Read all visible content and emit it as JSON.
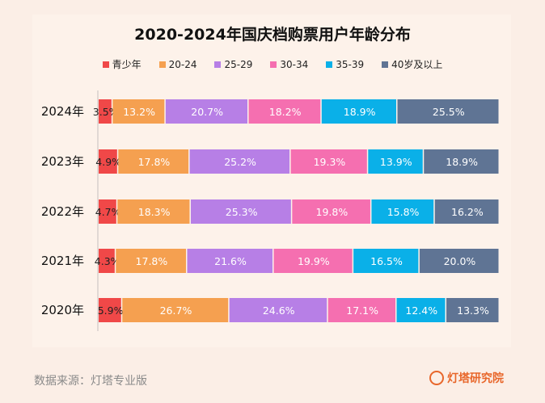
{
  "chart_data": {
    "type": "bar",
    "orientation": "horizontal",
    "stacked": true,
    "title": "2020-2024年国庆档购票用户年龄分布",
    "categories": [
      "2024年",
      "2023年",
      "2022年",
      "2021年",
      "2020年"
    ],
    "series": [
      {
        "name": "青少年",
        "color": "#f04848",
        "values": [
          3.5,
          4.9,
          4.7,
          4.3,
          5.9
        ]
      },
      {
        "name": "20-24",
        "color": "#f5a050",
        "values": [
          13.2,
          17.8,
          18.3,
          17.8,
          26.7
        ]
      },
      {
        "name": "25-29",
        "color": "#b77fe6",
        "values": [
          20.7,
          25.2,
          25.3,
          21.6,
          24.6
        ]
      },
      {
        "name": "30-34",
        "color": "#f56fb0",
        "values": [
          18.2,
          19.3,
          19.8,
          19.9,
          17.1
        ]
      },
      {
        "name": "35-39",
        "color": "#0ab0e8",
        "values": [
          18.9,
          13.9,
          15.8,
          16.5,
          12.4
        ]
      },
      {
        "name": "40岁及以上",
        "color": "#5f7494",
        "values": [
          25.5,
          18.9,
          16.2,
          20.0,
          13.3
        ]
      }
    ],
    "value_format": "percent",
    "xlim": [
      0,
      100
    ],
    "legend": "top",
    "grid": false
  },
  "footer": {
    "source": "数据来源：灯塔专业版",
    "brand": "灯塔研究院"
  }
}
